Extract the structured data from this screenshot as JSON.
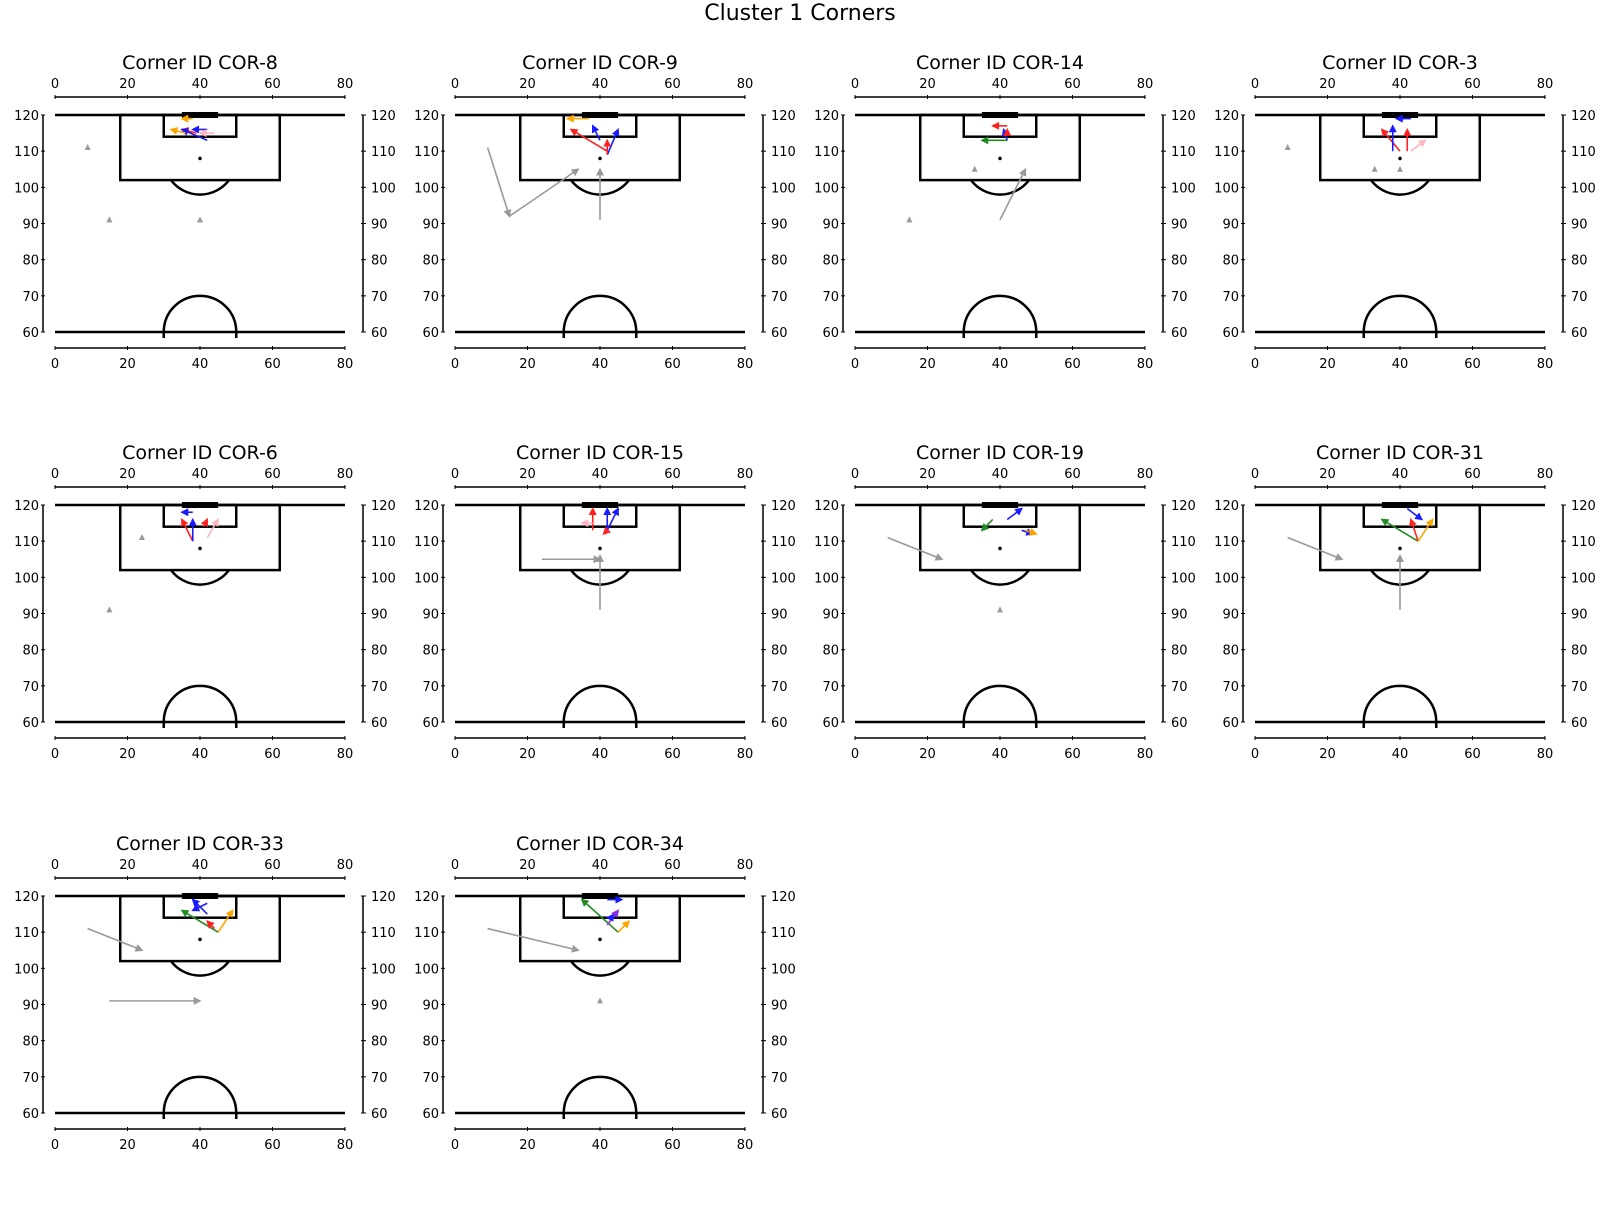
{
  "figure_title": "Cluster 1 Corners",
  "colors": {
    "line": "#000000",
    "grey": "#999999",
    "red": "#ff2020",
    "blue": "#1a1aff",
    "orange": "#ffa500",
    "pink": "#ffb6c1",
    "green": "#228b22",
    "purple": "#8a2be2"
  },
  "chart_data": [
    {
      "type": "scatter",
      "title": "Corner ID COR-8",
      "xlim": [
        0,
        80
      ],
      "ylim": [
        60,
        120
      ],
      "xticks": [
        "0",
        "20",
        "40",
        "60",
        "80"
      ],
      "yticks": [
        "60",
        "70",
        "80",
        "90",
        "100",
        "110",
        "120"
      ],
      "arrows": [
        {
          "x1": 38,
          "y1": 119,
          "x2": 35,
          "y2": 119,
          "color": "orange"
        },
        {
          "x1": 42,
          "y1": 116,
          "x2": 38,
          "y2": 116,
          "color": "blue"
        },
        {
          "x1": 39,
          "y1": 115,
          "x2": 35,
          "y2": 116,
          "color": "red"
        },
        {
          "x1": 42,
          "y1": 113,
          "x2": 35,
          "y2": 116,
          "color": "blue"
        },
        {
          "x1": 36,
          "y1": 115,
          "x2": 32,
          "y2": 116,
          "color": "orange"
        },
        {
          "x1": 44,
          "y1": 115,
          "x2": 40,
          "y2": 115,
          "color": "pink"
        }
      ],
      "points": [
        {
          "x": 9,
          "y": 111,
          "color": "grey"
        },
        {
          "x": 15,
          "y": 91,
          "color": "grey"
        },
        {
          "x": 40,
          "y": 91,
          "color": "grey"
        },
        {
          "x": 40,
          "y": 108,
          "color": "line"
        }
      ]
    },
    {
      "type": "scatter",
      "title": "Corner ID COR-9",
      "xlim": [
        0,
        80
      ],
      "ylim": [
        60,
        120
      ],
      "xticks": [
        "0",
        "20",
        "40",
        "60",
        "80"
      ],
      "yticks": [
        "60",
        "70",
        "80",
        "90",
        "100",
        "110",
        "120"
      ],
      "arrows": [
        {
          "x1": 9,
          "y1": 111,
          "x2": 15,
          "y2": 92,
          "color": "grey"
        },
        {
          "x1": 15,
          "y1": 92,
          "x2": 34,
          "y2": 105,
          "color": "grey"
        },
        {
          "x1": 40,
          "y1": 91,
          "x2": 40,
          "y2": 105,
          "color": "grey"
        },
        {
          "x1": 37,
          "y1": 119,
          "x2": 31,
          "y2": 119,
          "color": "orange"
        },
        {
          "x1": 42,
          "y1": 110,
          "x2": 32,
          "y2": 116,
          "color": "red"
        },
        {
          "x1": 40,
          "y1": 113,
          "x2": 38,
          "y2": 117,
          "color": "blue"
        },
        {
          "x1": 42,
          "y1": 109,
          "x2": 45,
          "y2": 116,
          "color": "blue"
        },
        {
          "x1": 42,
          "y1": 109,
          "x2": 42,
          "y2": 113,
          "color": "red"
        }
      ],
      "points": [
        {
          "x": 40,
          "y": 108,
          "color": "line"
        }
      ]
    },
    {
      "type": "scatter",
      "title": "Corner ID COR-14",
      "xlim": [
        0,
        80
      ],
      "ylim": [
        60,
        120
      ],
      "xticks": [
        "0",
        "20",
        "40",
        "60",
        "80"
      ],
      "yticks": [
        "60",
        "70",
        "80",
        "90",
        "100",
        "110",
        "120"
      ],
      "arrows": [
        {
          "x1": 40,
          "y1": 91,
          "x2": 47,
          "y2": 105,
          "color": "grey"
        },
        {
          "x1": 42,
          "y1": 117,
          "x2": 38,
          "y2": 117,
          "color": "red"
        },
        {
          "x1": 42,
          "y1": 113,
          "x2": 41,
          "y2": 116,
          "color": "blue"
        },
        {
          "x1": 42,
          "y1": 113,
          "x2": 35,
          "y2": 113,
          "color": "green"
        },
        {
          "x1": 42,
          "y1": 115,
          "x2": 42,
          "y2": 116,
          "color": "red"
        }
      ],
      "points": [
        {
          "x": 15,
          "y": 91,
          "color": "grey"
        },
        {
          "x": 33,
          "y": 105,
          "color": "grey"
        },
        {
          "x": 40,
          "y": 108,
          "color": "line"
        }
      ]
    },
    {
      "type": "scatter",
      "title": "Corner ID COR-3",
      "xlim": [
        0,
        80
      ],
      "ylim": [
        60,
        120
      ],
      "xticks": [
        "0",
        "20",
        "40",
        "60",
        "80"
      ],
      "yticks": [
        "60",
        "70",
        "80",
        "90",
        "100",
        "110",
        "120"
      ],
      "arrows": [
        {
          "x1": 43,
          "y1": 119,
          "x2": 39,
          "y2": 119,
          "color": "blue"
        },
        {
          "x1": 40,
          "y1": 110,
          "x2": 35,
          "y2": 116,
          "color": "red"
        },
        {
          "x1": 38,
          "y1": 110,
          "x2": 38,
          "y2": 117,
          "color": "blue"
        },
        {
          "x1": 42,
          "y1": 110,
          "x2": 42,
          "y2": 116,
          "color": "red"
        },
        {
          "x1": 43,
          "y1": 110,
          "x2": 47,
          "y2": 113,
          "color": "pink"
        }
      ],
      "points": [
        {
          "x": 9,
          "y": 111,
          "color": "grey"
        },
        {
          "x": 33,
          "y": 105,
          "color": "grey"
        },
        {
          "x": 40,
          "y": 105,
          "color": "grey"
        },
        {
          "x": 40,
          "y": 108,
          "color": "line"
        }
      ]
    },
    {
      "type": "scatter",
      "title": "Corner ID COR-6",
      "xlim": [
        0,
        80
      ],
      "ylim": [
        60,
        120
      ],
      "xticks": [
        "0",
        "20",
        "40",
        "60",
        "80"
      ],
      "yticks": [
        "60",
        "70",
        "80",
        "90",
        "100",
        "110",
        "120"
      ],
      "arrows": [
        {
          "x1": 38,
          "y1": 118,
          "x2": 35,
          "y2": 118,
          "color": "blue"
        },
        {
          "x1": 38,
          "y1": 110,
          "x2": 35,
          "y2": 116,
          "color": "red"
        },
        {
          "x1": 38,
          "y1": 110,
          "x2": 38,
          "y2": 116,
          "color": "blue"
        },
        {
          "x1": 41,
          "y1": 114,
          "x2": 42,
          "y2": 116,
          "color": "red"
        },
        {
          "x1": 42,
          "y1": 111,
          "x2": 45,
          "y2": 116,
          "color": "pink"
        }
      ],
      "points": [
        {
          "x": 24,
          "y": 111,
          "color": "grey"
        },
        {
          "x": 15,
          "y": 91,
          "color": "grey"
        },
        {
          "x": 40,
          "y": 108,
          "color": "line"
        }
      ]
    },
    {
      "type": "scatter",
      "title": "Corner ID COR-15",
      "xlim": [
        0,
        80
      ],
      "ylim": [
        60,
        120
      ],
      "xticks": [
        "0",
        "20",
        "40",
        "60",
        "80"
      ],
      "yticks": [
        "60",
        "70",
        "80",
        "90",
        "100",
        "110",
        "120"
      ],
      "arrows": [
        {
          "x1": 24,
          "y1": 105,
          "x2": 40,
          "y2": 105,
          "color": "grey"
        },
        {
          "x1": 40,
          "y1": 91,
          "x2": 40,
          "y2": 106,
          "color": "grey"
        },
        {
          "x1": 38,
          "y1": 113,
          "x2": 38,
          "y2": 119,
          "color": "red"
        },
        {
          "x1": 38,
          "y1": 115,
          "x2": 35,
          "y2": 115,
          "color": "pink"
        },
        {
          "x1": 42,
          "y1": 113,
          "x2": 42,
          "y2": 119,
          "color": "blue"
        },
        {
          "x1": 42,
          "y1": 113,
          "x2": 45,
          "y2": 119,
          "color": "blue"
        },
        {
          "x1": 42,
          "y1": 113,
          "x2": 41,
          "y2": 112,
          "color": "red"
        }
      ],
      "points": [
        {
          "x": 40,
          "y": 108,
          "color": "line"
        }
      ]
    },
    {
      "type": "scatter",
      "title": "Corner ID COR-19",
      "xlim": [
        0,
        80
      ],
      "ylim": [
        60,
        120
      ],
      "xticks": [
        "0",
        "20",
        "40",
        "60",
        "80"
      ],
      "yticks": [
        "60",
        "70",
        "80",
        "90",
        "100",
        "110",
        "120"
      ],
      "arrows": [
        {
          "x1": 9,
          "y1": 111,
          "x2": 24,
          "y2": 105,
          "color": "grey"
        },
        {
          "x1": 38,
          "y1": 116,
          "x2": 35,
          "y2": 113,
          "color": "green"
        },
        {
          "x1": 42,
          "y1": 116,
          "x2": 46,
          "y2": 119,
          "color": "blue"
        },
        {
          "x1": 46,
          "y1": 113,
          "x2": 49,
          "y2": 112,
          "color": "blue"
        },
        {
          "x1": 47,
          "y1": 113,
          "x2": 50,
          "y2": 112,
          "color": "orange"
        }
      ],
      "points": [
        {
          "x": 40,
          "y": 91,
          "color": "grey"
        },
        {
          "x": 40,
          "y": 108,
          "color": "line"
        }
      ]
    },
    {
      "type": "scatter",
      "title": "Corner ID COR-31",
      "xlim": [
        0,
        80
      ],
      "ylim": [
        60,
        120
      ],
      "xticks": [
        "0",
        "20",
        "40",
        "60",
        "80"
      ],
      "yticks": [
        "60",
        "70",
        "80",
        "90",
        "100",
        "110",
        "120"
      ],
      "arrows": [
        {
          "x1": 9,
          "y1": 111,
          "x2": 24,
          "y2": 105,
          "color": "grey"
        },
        {
          "x1": 40,
          "y1": 91,
          "x2": 40,
          "y2": 106,
          "color": "grey"
        },
        {
          "x1": 45,
          "y1": 110,
          "x2": 35,
          "y2": 116,
          "color": "green"
        },
        {
          "x1": 45,
          "y1": 110,
          "x2": 43,
          "y2": 116,
          "color": "red"
        },
        {
          "x1": 45,
          "y1": 110,
          "x2": 49,
          "y2": 116,
          "color": "orange"
        },
        {
          "x1": 42,
          "y1": 119,
          "x2": 46,
          "y2": 116,
          "color": "blue"
        }
      ],
      "points": [
        {
          "x": 40,
          "y": 108,
          "color": "line"
        }
      ]
    },
    {
      "type": "scatter",
      "title": "Corner ID COR-33",
      "xlim": [
        0,
        80
      ],
      "ylim": [
        60,
        120
      ],
      "xticks": [
        "0",
        "20",
        "40",
        "60",
        "80"
      ],
      "yticks": [
        "60",
        "70",
        "80",
        "90",
        "100",
        "110",
        "120"
      ],
      "arrows": [
        {
          "x1": 9,
          "y1": 111,
          "x2": 24,
          "y2": 105,
          "color": "grey"
        },
        {
          "x1": 15,
          "y1": 91,
          "x2": 40,
          "y2": 91,
          "color": "grey"
        },
        {
          "x1": 45,
          "y1": 110,
          "x2": 35,
          "y2": 116,
          "color": "green"
        },
        {
          "x1": 45,
          "y1": 110,
          "x2": 49,
          "y2": 116,
          "color": "orange"
        },
        {
          "x1": 42,
          "y1": 115,
          "x2": 38,
          "y2": 119,
          "color": "blue"
        },
        {
          "x1": 42,
          "y1": 118,
          "x2": 38,
          "y2": 116,
          "color": "blue"
        },
        {
          "x1": 44,
          "y1": 111,
          "x2": 42,
          "y2": 113,
          "color": "red"
        }
      ],
      "points": [
        {
          "x": 40,
          "y": 108,
          "color": "line"
        }
      ]
    },
    {
      "type": "scatter",
      "title": "Corner ID COR-34",
      "xlim": [
        0,
        80
      ],
      "ylim": [
        60,
        120
      ],
      "xticks": [
        "0",
        "20",
        "40",
        "60",
        "80"
      ],
      "yticks": [
        "60",
        "70",
        "80",
        "90",
        "100",
        "110",
        "120"
      ],
      "arrows": [
        {
          "x1": 9,
          "y1": 111,
          "x2": 34,
          "y2": 105,
          "color": "grey"
        },
        {
          "x1": 45,
          "y1": 110,
          "x2": 35,
          "y2": 119,
          "color": "green"
        },
        {
          "x1": 45,
          "y1": 110,
          "x2": 48,
          "y2": 113,
          "color": "orange"
        },
        {
          "x1": 42,
          "y1": 119,
          "x2": 46,
          "y2": 119,
          "color": "blue"
        },
        {
          "x1": 42,
          "y1": 112,
          "x2": 45,
          "y2": 116,
          "color": "purple"
        },
        {
          "x1": 44,
          "y1": 114,
          "x2": 42,
          "y2": 114,
          "color": "blue"
        }
      ],
      "points": [
        {
          "x": 40,
          "y": 91,
          "color": "grey"
        },
        {
          "x": 40,
          "y": 108,
          "color": "line"
        }
      ]
    }
  ]
}
